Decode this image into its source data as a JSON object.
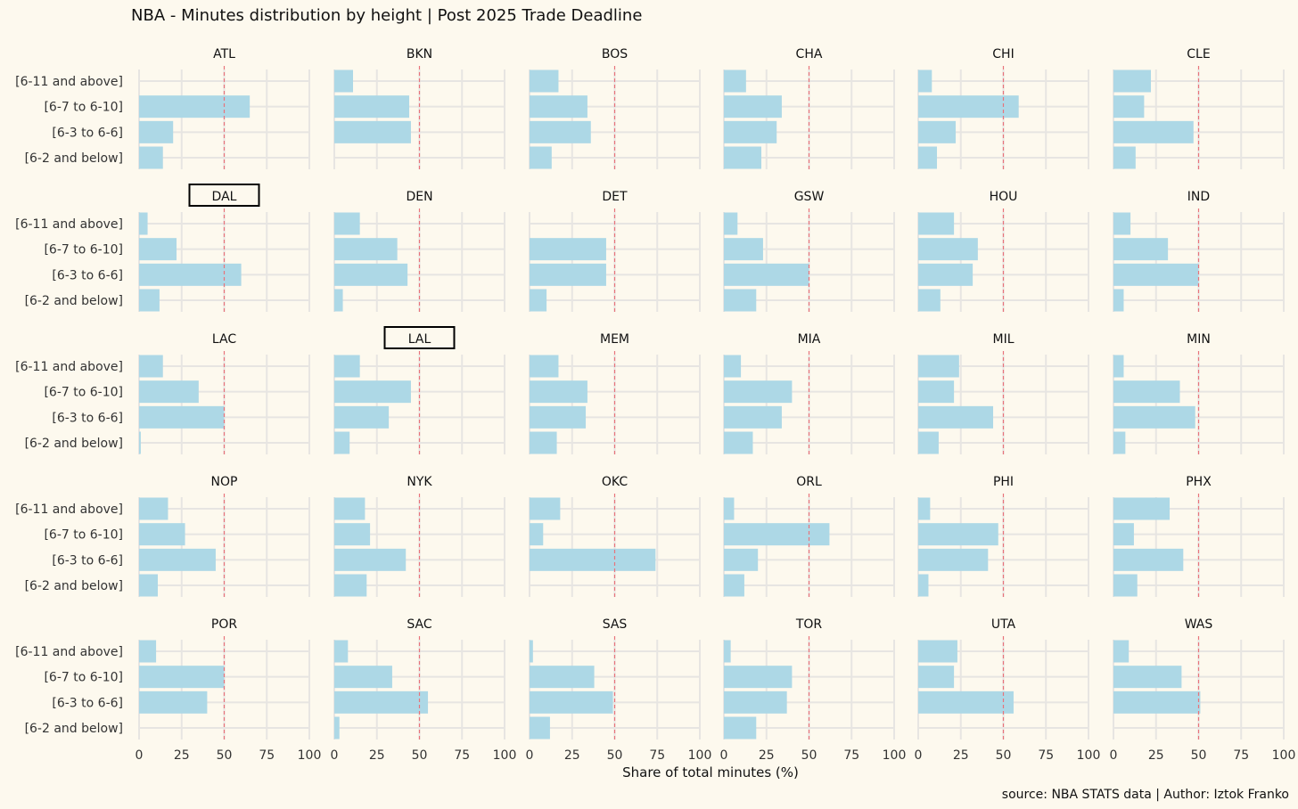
{
  "chart_data": {
    "type": "bar",
    "orientation": "horizontal",
    "title": "NBA - Minutes distribution by height | Post 2025 Trade Deadline",
    "xlabel": "Share of total minutes (%)",
    "caption": "source: NBA STATS data | Author: Iztok Franko",
    "xlim": [
      0,
      100
    ],
    "xticks": [
      0,
      25,
      50,
      75,
      100
    ],
    "reference_line": 50,
    "categories": [
      "[6-11 and above]",
      "[6-7 to 6-10]",
      "[6-3 to 6-6]",
      "[6-2 and below]"
    ],
    "highlighted": [
      "DAL",
      "LAL"
    ],
    "grid": true,
    "bar_color": "#add8e6",
    "reference_color": "#e8737b",
    "highlight_border_color": "#000000",
    "panels": [
      {
        "team": "ATL",
        "values": [
          0,
          65,
          20,
          14
        ]
      },
      {
        "team": "BKN",
        "values": [
          11,
          44,
          45,
          0
        ]
      },
      {
        "team": "BOS",
        "values": [
          17,
          34,
          36,
          13
        ]
      },
      {
        "team": "CHA",
        "values": [
          13,
          34,
          31,
          22
        ]
      },
      {
        "team": "CHI",
        "values": [
          8,
          59,
          22,
          11
        ]
      },
      {
        "team": "CLE",
        "values": [
          22,
          18,
          47,
          13
        ]
      },
      {
        "team": "DAL",
        "values": [
          5,
          22,
          60,
          12
        ]
      },
      {
        "team": "DEN",
        "values": [
          15,
          37,
          43,
          5
        ]
      },
      {
        "team": "DET",
        "values": [
          0,
          45,
          45,
          10
        ]
      },
      {
        "team": "GSW",
        "values": [
          8,
          23,
          50,
          19
        ]
      },
      {
        "team": "HOU",
        "values": [
          21,
          35,
          32,
          13
        ]
      },
      {
        "team": "IND",
        "values": [
          10,
          32,
          50,
          6
        ]
      },
      {
        "team": "LAC",
        "values": [
          14,
          35,
          50,
          1
        ]
      },
      {
        "team": "LAL",
        "values": [
          15,
          45,
          32,
          9
        ]
      },
      {
        "team": "MEM",
        "values": [
          17,
          34,
          33,
          16
        ]
      },
      {
        "team": "MIA",
        "values": [
          10,
          40,
          34,
          17
        ]
      },
      {
        "team": "MIL",
        "values": [
          24,
          21,
          44,
          12
        ]
      },
      {
        "team": "MIN",
        "values": [
          6,
          39,
          48,
          7
        ]
      },
      {
        "team": "NOP",
        "values": [
          17,
          27,
          45,
          11
        ]
      },
      {
        "team": "NYK",
        "values": [
          18,
          21,
          42,
          19
        ]
      },
      {
        "team": "OKC",
        "values": [
          18,
          8,
          74,
          0
        ]
      },
      {
        "team": "ORL",
        "values": [
          6,
          62,
          20,
          12
        ]
      },
      {
        "team": "PHI",
        "values": [
          7,
          47,
          41,
          6
        ]
      },
      {
        "team": "PHX",
        "values": [
          33,
          12,
          41,
          14
        ]
      },
      {
        "team": "POR",
        "values": [
          10,
          50,
          40,
          0
        ]
      },
      {
        "team": "SAC",
        "values": [
          8,
          34,
          55,
          3
        ]
      },
      {
        "team": "SAS",
        "values": [
          2,
          38,
          49,
          12
        ]
      },
      {
        "team": "TOR",
        "values": [
          4,
          40,
          37,
          19
        ]
      },
      {
        "team": "UTA",
        "values": [
          23,
          21,
          56,
          0
        ]
      },
      {
        "team": "WAS",
        "values": [
          9,
          40,
          51,
          0
        ]
      }
    ]
  }
}
